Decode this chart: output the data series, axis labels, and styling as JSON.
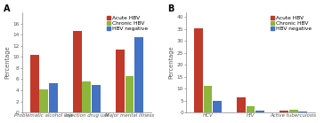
{
  "panel_A": {
    "label": "A",
    "categories": [
      "Problematic alcohol use",
      "Injection drug use",
      "Major mental illness"
    ],
    "series": {
      "Acute HBV": [
        10.4,
        14.7,
        11.3
      ],
      "Chronic HBV": [
        4.2,
        5.6,
        6.6
      ],
      "HBV negative": [
        5.2,
        5.0,
        13.6
      ]
    },
    "ylabel": "Percentage",
    "ylim": [
      0,
      18
    ],
    "yticks": [
      0,
      2,
      4,
      6,
      8,
      10,
      12,
      14,
      16
    ]
  },
  "panel_B": {
    "label": "B",
    "categories": [
      "HCV",
      "HIV",
      "Active tuberculosis"
    ],
    "series": {
      "Acute HBV": [
        35.5,
        6.2,
        0.9
      ],
      "Chronic HBV": [
        11.0,
        2.8,
        1.3
      ],
      "HBV negative": [
        4.7,
        0.8,
        0.3
      ]
    },
    "ylabel": "Percentage",
    "ylim": [
      0,
      42
    ],
    "yticks": [
      0,
      5,
      10,
      15,
      20,
      25,
      30,
      35,
      40
    ]
  },
  "colors": {
    "Acute HBV": "#c0392b",
    "Chronic HBV": "#8db63c",
    "HBV negative": "#4472c4"
  },
  "legend_labels": [
    "Acute HBV",
    "Chronic HBV",
    "HBV negative"
  ],
  "bar_width": 0.22,
  "xtick_fontsize": 4.0,
  "tick_fontsize": 4.2,
  "legend_fontsize": 4.2,
  "ylabel_fontsize": 4.8,
  "panel_label_fontsize": 7.0
}
